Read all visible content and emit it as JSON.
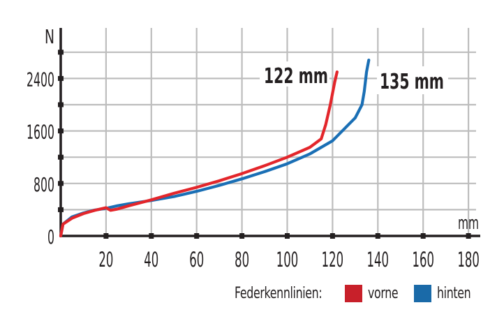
{
  "chart_data": {
    "type": "line",
    "title": "",
    "xlabel": "mm",
    "ylabel": "N",
    "xlim": [
      0,
      180
    ],
    "ylim": [
      0,
      2800
    ],
    "x_ticks": [
      20,
      40,
      60,
      80,
      100,
      120,
      140,
      160,
      180
    ],
    "y_ticks": [
      0,
      800,
      1600,
      2400
    ],
    "y_minor_ticks": [
      400,
      1200,
      2000,
      2800
    ],
    "grid": true,
    "legend_position": "bottom-right",
    "legend_title": "Federkennlinien:",
    "annotations": [
      {
        "text": "122 mm",
        "series": "vorne"
      },
      {
        "text": "135 mm",
        "series": "hinten"
      }
    ],
    "series": [
      {
        "name": "vorne",
        "color": "#e3262b",
        "x": [
          0,
          1,
          5,
          10,
          15,
          20,
          22,
          25,
          30,
          40,
          50,
          60,
          70,
          80,
          90,
          100,
          110,
          115,
          117,
          119,
          121,
          122
        ],
        "y": [
          0,
          180,
          270,
          340,
          390,
          430,
          390,
          410,
          460,
          550,
          650,
          740,
          840,
          950,
          1070,
          1200,
          1350,
          1480,
          1700,
          2000,
          2350,
          2500
        ]
      },
      {
        "name": "hinten",
        "color": "#1a6fb5",
        "x": [
          0,
          1,
          5,
          10,
          15,
          20,
          25,
          30,
          40,
          50,
          60,
          70,
          80,
          90,
          100,
          110,
          120,
          130,
          133,
          134,
          135,
          136
        ],
        "y": [
          0,
          180,
          290,
          350,
          395,
          420,
          460,
          490,
          540,
          600,
          680,
          770,
          870,
          980,
          1100,
          1250,
          1450,
          1800,
          2000,
          2200,
          2500,
          2680
        ]
      }
    ]
  },
  "axis": {
    "y_unit": "N",
    "x_unit": "mm",
    "y_tick_labels": [
      "0",
      "800",
      "1600",
      "2400"
    ],
    "x_tick_labels": [
      "20",
      "40",
      "60",
      "80",
      "100",
      "120",
      "140",
      "160",
      "180"
    ]
  },
  "annotations": {
    "front": "122 mm",
    "rear": "135 mm"
  },
  "legend": {
    "title": "Federkennlinien:",
    "items": [
      {
        "label": "vorne",
        "color": "#c8202a"
      },
      {
        "label": "hinten",
        "color": "#1a6aa8"
      }
    ]
  },
  "colors": {
    "grid": "#bdbdbd",
    "axis": "#231f20",
    "front_line": "#e3262b",
    "rear_line": "#1a6fb5"
  }
}
